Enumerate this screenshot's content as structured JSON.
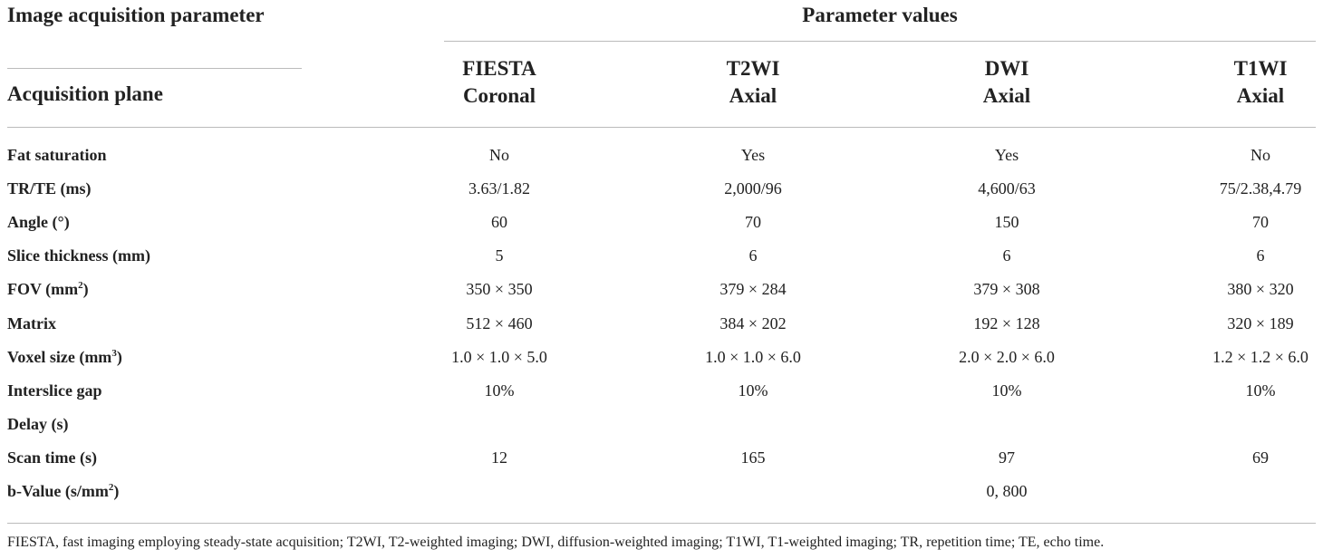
{
  "header": {
    "left": "Image acquisition parameter",
    "right": "Parameter values",
    "row_label": "Acquisition plane"
  },
  "columns": [
    {
      "sequence": "FIESTA",
      "plane": "Coronal"
    },
    {
      "sequence": "T2WI",
      "plane": "Axial"
    },
    {
      "sequence": "DWI",
      "plane": "Axial"
    },
    {
      "sequence": "T1WI",
      "plane": "Axial"
    }
  ],
  "rows": [
    {
      "label": {
        "text": "Fat saturation"
      },
      "cells": [
        "No",
        "Yes",
        "Yes",
        "No"
      ]
    },
    {
      "label": {
        "text": "TR/TE (ms)"
      },
      "cells": [
        "3.63/1.82",
        "2,000/96",
        "4,600/63",
        "75/2.38,4.79"
      ]
    },
    {
      "label": {
        "text": "Angle (°)"
      },
      "cells": [
        "60",
        "70",
        "150",
        "70"
      ]
    },
    {
      "label": {
        "text": "Slice thickness (mm)"
      },
      "cells": [
        "5",
        "6",
        "6",
        "6"
      ]
    },
    {
      "label": {
        "text": "FOV (mm",
        "sup": "2",
        "tail": ")"
      },
      "cells": [
        "350 × 350",
        "379 × 284",
        "379 × 308",
        "380 × 320"
      ]
    },
    {
      "label": {
        "text": "Matrix"
      },
      "cells": [
        "512 × 460",
        "384 × 202",
        "192 × 128",
        "320 × 189"
      ]
    },
    {
      "label": {
        "text": "Voxel size (mm",
        "sup": "3",
        "tail": ")"
      },
      "cells": [
        "1.0 × 1.0 × 5.0",
        "1.0 × 1.0 × 6.0",
        "2.0 × 2.0 × 6.0",
        "1.2 × 1.2 × 6.0"
      ]
    },
    {
      "label": {
        "text": "Interslice gap"
      },
      "cells": [
        "10%",
        "10%",
        "10%",
        "10%"
      ]
    },
    {
      "label": {
        "text": "Delay (s)"
      },
      "cells": [
        null,
        null,
        null,
        null
      ]
    },
    {
      "label": {
        "text": "Scan time (s)"
      },
      "cells": [
        "12",
        "165",
        "97",
        "69"
      ]
    },
    {
      "label": {
        "text": "b-Value (s/mm",
        "sup": "2",
        "tail": ")"
      },
      "cells": [
        null,
        null,
        "0, 800",
        null
      ]
    }
  ],
  "footnote": "FIESTA, fast imaging employing steady-state acquisition; T2WI, T2-weighted imaging; DWI, diffusion-weighted imaging; T1WI, T1-weighted imaging; TR, repetition time; TE, echo time."
}
